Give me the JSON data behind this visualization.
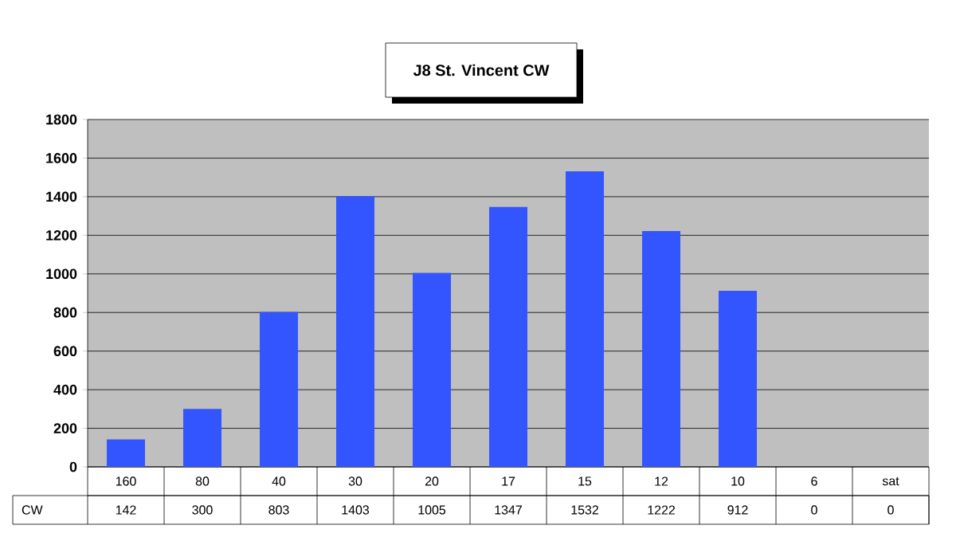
{
  "chart_data": {
    "type": "bar",
    "title": "J8 St. Vincent CW",
    "categories": [
      "160",
      "80",
      "40",
      "30",
      "20",
      "17",
      "15",
      "12",
      "10",
      "6",
      "sat"
    ],
    "series": [
      {
        "name": "CW",
        "color": "#3355ff",
        "values": [
          142,
          300,
          803,
          1403,
          1005,
          1347,
          1532,
          1222,
          912,
          0,
          0
        ]
      }
    ],
    "ylim": [
      0,
      1800
    ],
    "yticks": [
      0,
      200,
      400,
      600,
      800,
      1000,
      1200,
      1400,
      1600,
      1800
    ],
    "grid": "y",
    "data_labels": true
  }
}
